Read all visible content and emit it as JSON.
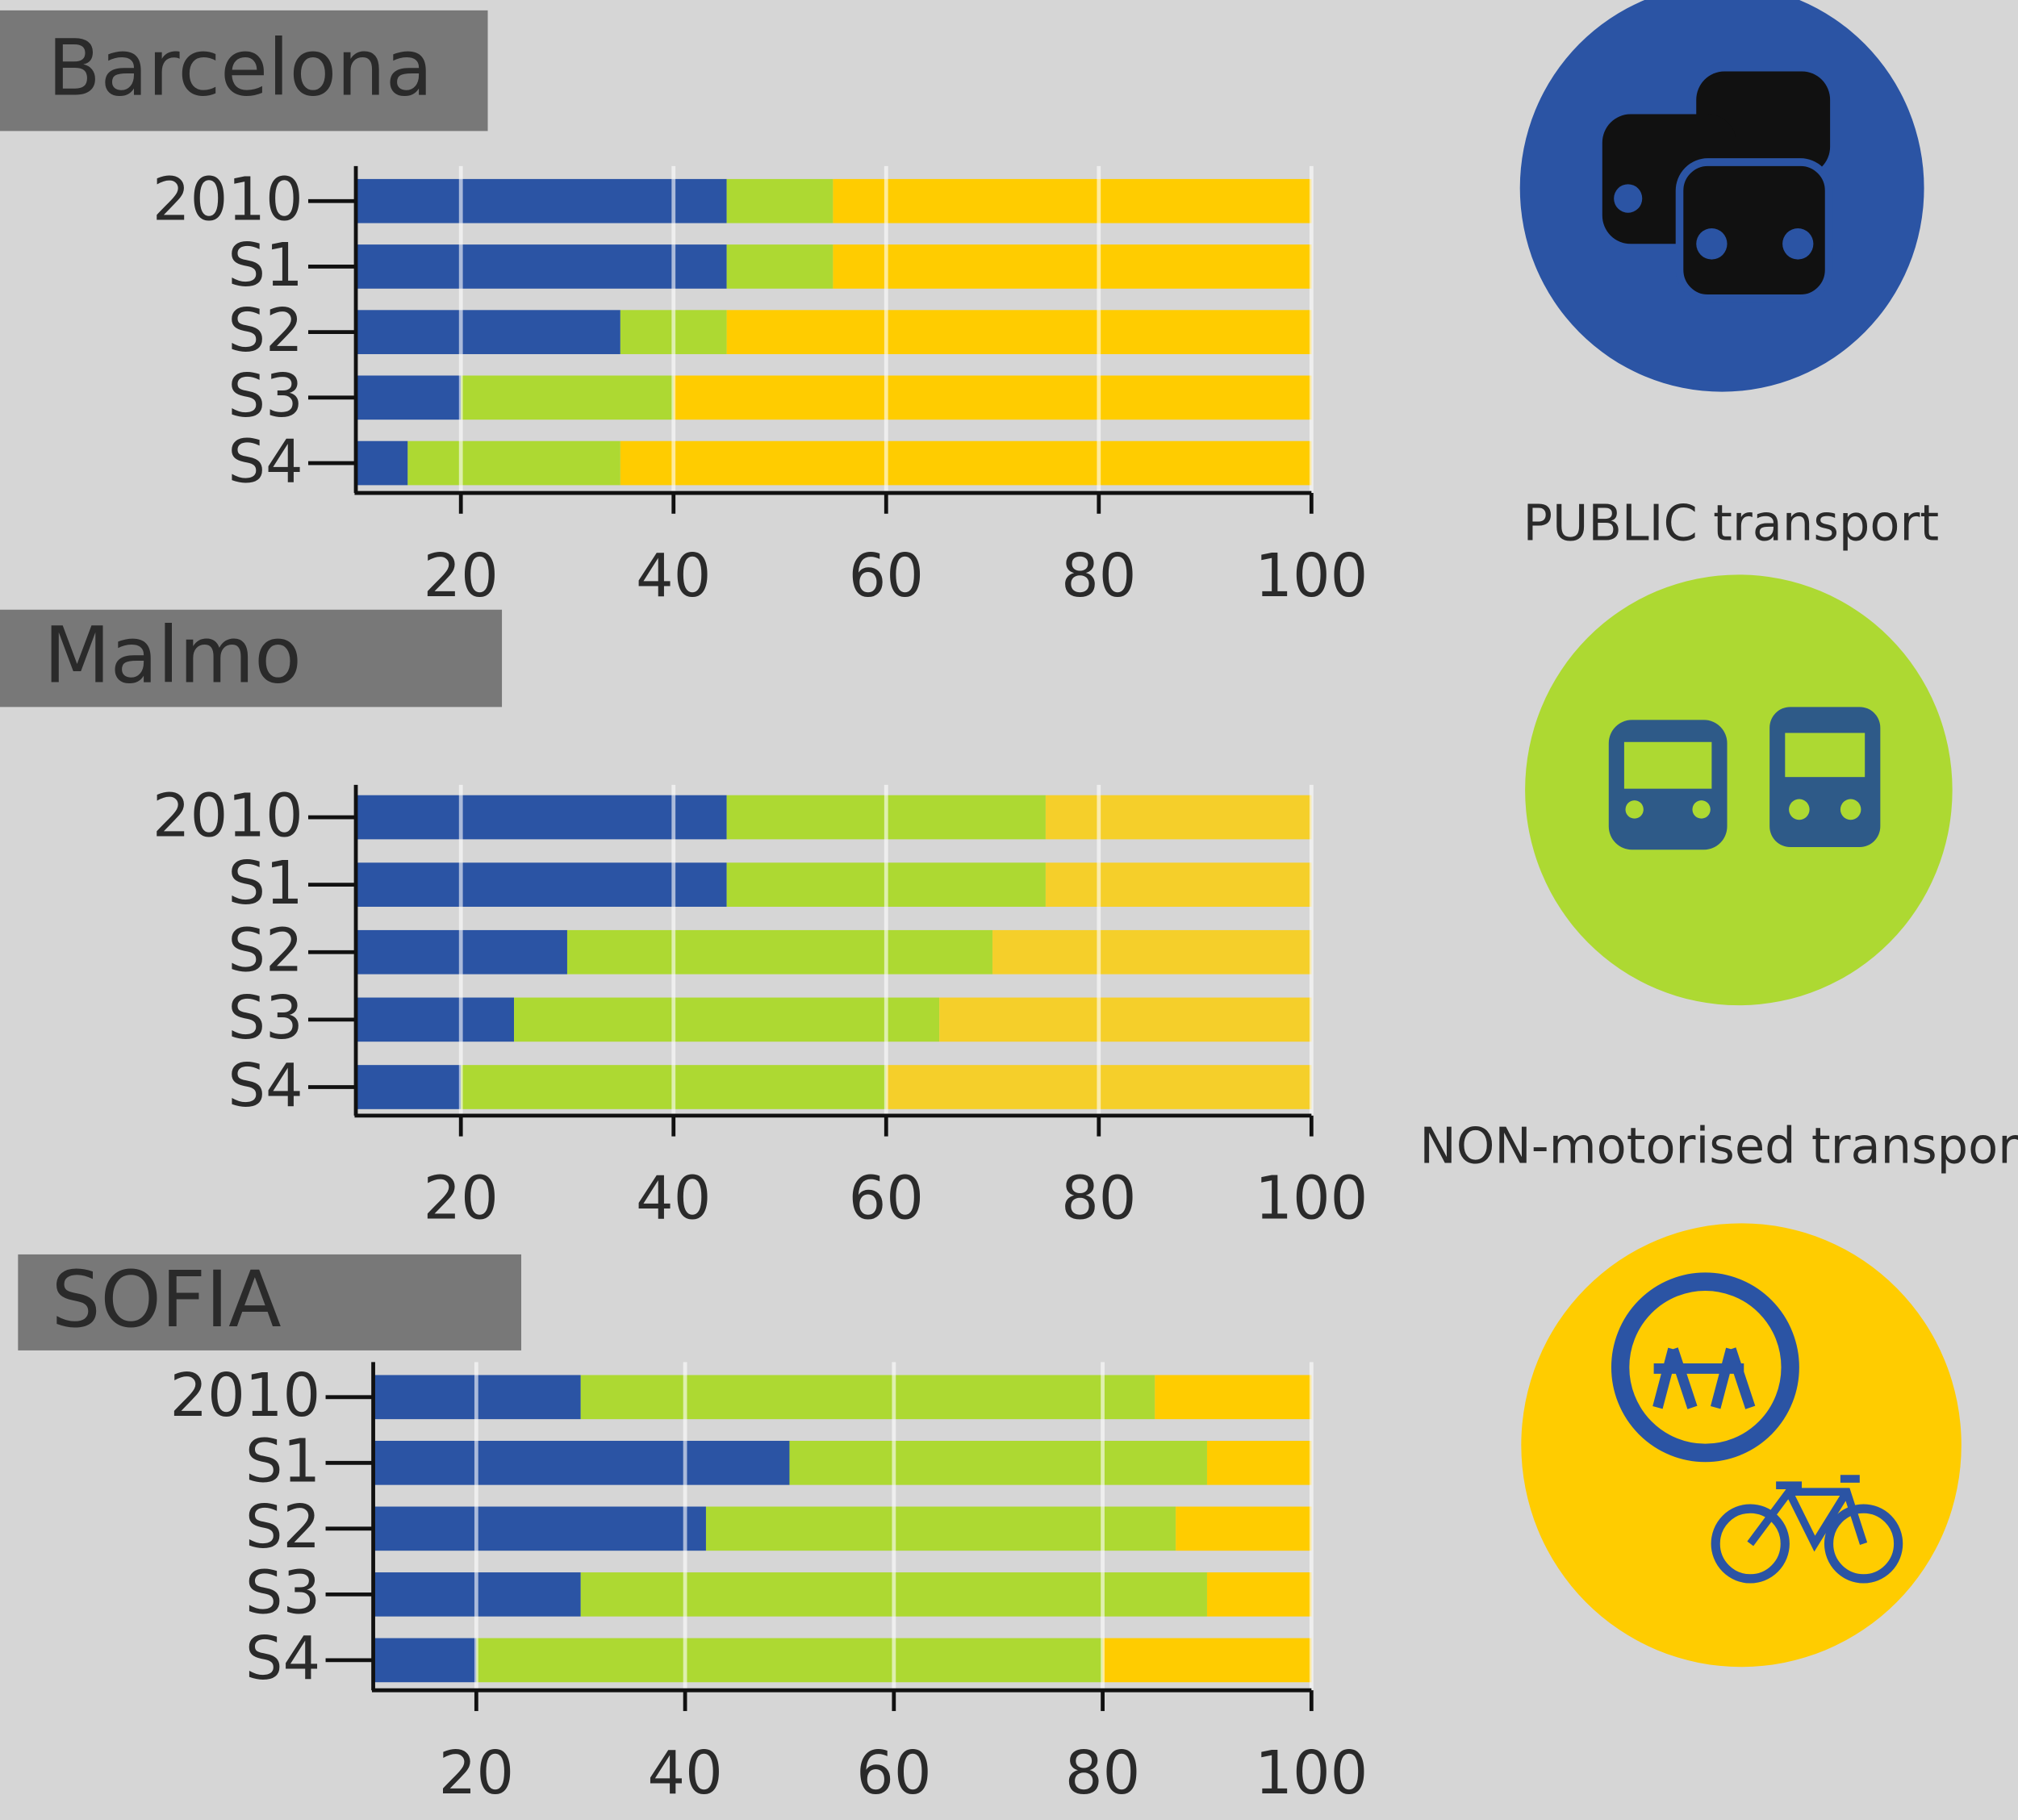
{
  "chart_data": [
    {
      "type": "bar",
      "orientation": "horizontal",
      "stacked": true,
      "title": "Barcelona",
      "categories": [
        "2010",
        "S1",
        "S2",
        "S3",
        "S4"
      ],
      "series": [
        {
          "color": "#2b54a4",
          "values": [
            45,
            45,
            35,
            20,
            15
          ]
        },
        {
          "color": "#add932",
          "values": [
            10,
            10,
            10,
            20,
            20
          ]
        },
        {
          "color": "#ffcc00",
          "values": [
            45,
            45,
            55,
            60,
            65
          ]
        }
      ],
      "xlim": [
        10,
        100
      ],
      "xticks": [
        20,
        40,
        60,
        80,
        100
      ],
      "grid": true
    },
    {
      "type": "bar",
      "orientation": "horizontal",
      "stacked": true,
      "title": "Malmo",
      "categories": [
        "2010",
        "S1",
        "S2",
        "S3",
        "S4"
      ],
      "series": [
        {
          "color": "#2b54a4",
          "values": [
            45,
            45,
            30,
            25,
            20
          ]
        },
        {
          "color": "#add932",
          "values": [
            30,
            30,
            40,
            40,
            40
          ]
        },
        {
          "color": "#f5cf2a",
          "values": [
            25,
            25,
            30,
            35,
            40
          ]
        }
      ],
      "xlim": [
        10,
        100
      ],
      "xticks": [
        20,
        40,
        60,
        80,
        100
      ],
      "grid": true
    },
    {
      "type": "bar",
      "orientation": "horizontal",
      "stacked": true,
      "title": "SOFIA",
      "categories": [
        "2010",
        "S1",
        "S2",
        "S3",
        "S4"
      ],
      "series": [
        {
          "color": "#2b54a4",
          "values": [
            30,
            50,
            42,
            30,
            20
          ]
        },
        {
          "color": "#add932",
          "values": [
            55,
            40,
            45,
            60,
            60
          ]
        },
        {
          "color": "#ffcc00",
          "values": [
            15,
            10,
            13,
            10,
            20
          ]
        }
      ],
      "xlim": [
        10,
        100
      ],
      "xticks": [
        20,
        40,
        60,
        80,
        100
      ],
      "grid": true
    }
  ],
  "legend": [
    "PUBLIC transport",
    "NON-motorised transport"
  ]
}
